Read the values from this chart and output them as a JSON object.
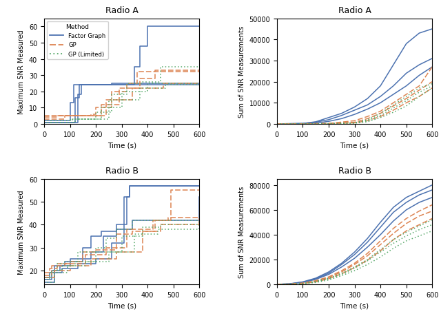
{
  "colors": {
    "factor_graph": "#4C72B0",
    "gp": "#DD8452",
    "gp_limited": "#55A868"
  },
  "subplots": {
    "radio_a_max": {
      "title": "Radio A",
      "xlabel": "Time (s)",
      "ylabel": "Maximum SNR Measured",
      "xlim": [
        0,
        600
      ],
      "ylim": [
        -1,
        65
      ]
    },
    "radio_a_sum": {
      "title": "Radio A",
      "xlabel": "Time (s)",
      "ylabel": "Sum of SNR Measurements",
      "xlim": [
        0,
        600
      ],
      "ylim": [
        -500,
        50000
      ]
    },
    "radio_b_max": {
      "title": "Radio B",
      "xlabel": "Time (s)",
      "ylabel": "Maximum SNR Measured",
      "xlim": [
        0,
        600
      ],
      "ylim": [
        14,
        60
      ]
    },
    "radio_b_sum": {
      "title": "Radio B",
      "xlabel": "Time (s)",
      "ylabel": "Sum of SNR Measurements",
      "xlim": [
        0,
        600
      ],
      "ylim": [
        -500,
        85000
      ]
    }
  },
  "fg_ra_runs": [
    [
      [
        0,
        1
      ],
      [
        120,
        16
      ],
      [
        135,
        24
      ],
      [
        250,
        24
      ],
      [
        260,
        25
      ],
      [
        600,
        25
      ]
    ],
    [
      [
        0,
        2
      ],
      [
        100,
        13
      ],
      [
        115,
        24
      ],
      [
        350,
        35
      ],
      [
        370,
        48
      ],
      [
        400,
        60
      ],
      [
        410,
        60
      ],
      [
        460,
        60
      ],
      [
        600,
        60
      ]
    ],
    [
      [
        0,
        1
      ],
      [
        130,
        18
      ],
      [
        145,
        24
      ],
      [
        600,
        24
      ]
    ]
  ],
  "gp_ra_runs": [
    [
      [
        0,
        4
      ],
      [
        50,
        5
      ],
      [
        180,
        6
      ],
      [
        200,
        10
      ],
      [
        260,
        20
      ],
      [
        320,
        25
      ],
      [
        360,
        32
      ],
      [
        600,
        32
      ]
    ],
    [
      [
        0,
        5
      ],
      [
        60,
        5
      ],
      [
        220,
        12
      ],
      [
        290,
        22
      ],
      [
        370,
        28
      ],
      [
        430,
        33
      ],
      [
        600,
        33
      ]
    ],
    [
      [
        0,
        3
      ],
      [
        80,
        5
      ],
      [
        240,
        15
      ],
      [
        340,
        22
      ],
      [
        460,
        25
      ],
      [
        600,
        25
      ]
    ]
  ],
  "gpl_ra_runs": [
    [
      [
        0,
        1
      ],
      [
        100,
        3
      ],
      [
        200,
        7
      ],
      [
        260,
        18
      ],
      [
        320,
        25
      ],
      [
        380,
        26
      ],
      [
        450,
        35
      ],
      [
        600,
        35
      ]
    ],
    [
      [
        0,
        2
      ],
      [
        110,
        3
      ],
      [
        220,
        10
      ],
      [
        300,
        20
      ],
      [
        400,
        25
      ],
      [
        600,
        25
      ]
    ],
    [
      [
        0,
        1
      ],
      [
        120,
        3
      ],
      [
        250,
        15
      ],
      [
        370,
        22
      ],
      [
        470,
        24
      ],
      [
        600,
        25
      ]
    ]
  ],
  "fg_rb_runs": [
    [
      [
        0,
        17
      ],
      [
        20,
        19
      ],
      [
        40,
        22
      ],
      [
        80,
        24
      ],
      [
        100,
        24
      ],
      [
        150,
        30
      ],
      [
        180,
        35
      ],
      [
        220,
        37
      ],
      [
        280,
        38
      ],
      [
        310,
        52
      ],
      [
        330,
        57
      ],
      [
        360,
        57
      ],
      [
        600,
        57
      ]
    ],
    [
      [
        0,
        16
      ],
      [
        30,
        20
      ],
      [
        60,
        22
      ],
      [
        100,
        25
      ],
      [
        180,
        28
      ],
      [
        230,
        35
      ],
      [
        280,
        40
      ],
      [
        320,
        52
      ],
      [
        330,
        57
      ],
      [
        600,
        57
      ]
    ],
    [
      [
        0,
        15
      ],
      [
        40,
        19
      ],
      [
        70,
        21
      ],
      [
        130,
        23
      ],
      [
        200,
        25
      ],
      [
        260,
        32
      ],
      [
        310,
        38
      ],
      [
        340,
        42
      ],
      [
        600,
        52
      ]
    ]
  ],
  "gp_rb_runs": [
    [
      [
        0,
        19
      ],
      [
        20,
        21
      ],
      [
        50,
        23
      ],
      [
        100,
        24
      ],
      [
        150,
        28
      ],
      [
        200,
        29
      ],
      [
        280,
        36
      ],
      [
        340,
        37
      ],
      [
        430,
        42
      ],
      [
        490,
        55
      ],
      [
        600,
        55
      ]
    ],
    [
      [
        0,
        18
      ],
      [
        30,
        22
      ],
      [
        80,
        23
      ],
      [
        160,
        27
      ],
      [
        240,
        30
      ],
      [
        320,
        38
      ],
      [
        420,
        42
      ],
      [
        480,
        43
      ],
      [
        600,
        42
      ]
    ],
    [
      [
        0,
        17
      ],
      [
        40,
        20
      ],
      [
        100,
        22
      ],
      [
        180,
        25
      ],
      [
        280,
        28
      ],
      [
        380,
        37
      ],
      [
        450,
        40
      ],
      [
        600,
        42
      ]
    ]
  ],
  "gpl_rb_runs": [
    [
      [
        0,
        16
      ],
      [
        20,
        19
      ],
      [
        50,
        23
      ],
      [
        80,
        24
      ],
      [
        130,
        28
      ],
      [
        200,
        30
      ],
      [
        240,
        34
      ],
      [
        280,
        38
      ],
      [
        340,
        42
      ],
      [
        380,
        42
      ],
      [
        600,
        42
      ]
    ],
    [
      [
        0,
        17
      ],
      [
        30,
        20
      ],
      [
        70,
        22
      ],
      [
        120,
        24
      ],
      [
        200,
        28
      ],
      [
        300,
        35
      ],
      [
        380,
        39
      ],
      [
        450,
        40
      ],
      [
        600,
        40
      ]
    ],
    [
      [
        0,
        15
      ],
      [
        40,
        19
      ],
      [
        90,
        22
      ],
      [
        160,
        24
      ],
      [
        250,
        28
      ],
      [
        350,
        36
      ],
      [
        440,
        38
      ],
      [
        600,
        42
      ]
    ]
  ],
  "fg_ra_sum": [
    [
      [
        0,
        0
      ],
      [
        100,
        200
      ],
      [
        150,
        1000
      ],
      [
        200,
        3000
      ],
      [
        250,
        5000
      ],
      [
        300,
        8000
      ],
      [
        350,
        12000
      ],
      [
        400,
        18000
      ],
      [
        450,
        28000
      ],
      [
        500,
        38000
      ],
      [
        550,
        43000
      ],
      [
        600,
        45000
      ]
    ],
    [
      [
        0,
        0
      ],
      [
        100,
        200
      ],
      [
        150,
        800
      ],
      [
        200,
        2000
      ],
      [
        250,
        4000
      ],
      [
        300,
        6500
      ],
      [
        350,
        9000
      ],
      [
        400,
        13000
      ],
      [
        450,
        18000
      ],
      [
        500,
        24000
      ],
      [
        550,
        28000
      ],
      [
        600,
        31000
      ]
    ],
    [
      [
        0,
        0
      ],
      [
        100,
        100
      ],
      [
        150,
        400
      ],
      [
        200,
        1200
      ],
      [
        250,
        2500
      ],
      [
        300,
        4500
      ],
      [
        350,
        7000
      ],
      [
        400,
        10000
      ],
      [
        450,
        14000
      ],
      [
        500,
        18000
      ],
      [
        550,
        23000
      ],
      [
        600,
        27000
      ]
    ]
  ],
  "gp_ra_sum": [
    [
      [
        0,
        0
      ],
      [
        100,
        50
      ],
      [
        200,
        200
      ],
      [
        300,
        1500
      ],
      [
        350,
        3500
      ],
      [
        400,
        6000
      ],
      [
        450,
        10000
      ],
      [
        500,
        14000
      ],
      [
        550,
        18000
      ],
      [
        600,
        27000
      ]
    ],
    [
      [
        0,
        0
      ],
      [
        100,
        50
      ],
      [
        200,
        150
      ],
      [
        300,
        800
      ],
      [
        350,
        2500
      ],
      [
        400,
        5000
      ],
      [
        450,
        8500
      ],
      [
        500,
        12000
      ],
      [
        550,
        16000
      ],
      [
        600,
        20000
      ]
    ],
    [
      [
        0,
        0
      ],
      [
        100,
        30
      ],
      [
        200,
        100
      ],
      [
        300,
        500
      ],
      [
        350,
        1500
      ],
      [
        400,
        3500
      ],
      [
        450,
        6500
      ],
      [
        500,
        10000
      ],
      [
        550,
        13000
      ],
      [
        600,
        17000
      ]
    ]
  ],
  "gpl_ra_sum": [
    [
      [
        0,
        0
      ],
      [
        100,
        30
      ],
      [
        200,
        100
      ],
      [
        300,
        500
      ],
      [
        350,
        2000
      ],
      [
        400,
        5000
      ],
      [
        450,
        9000
      ],
      [
        500,
        13000
      ],
      [
        550,
        17000
      ],
      [
        600,
        19000
      ]
    ],
    [
      [
        0,
        0
      ],
      [
        100,
        30
      ],
      [
        200,
        100
      ],
      [
        300,
        400
      ],
      [
        350,
        1500
      ],
      [
        400,
        4000
      ],
      [
        450,
        7500
      ],
      [
        500,
        11000
      ],
      [
        550,
        15000
      ],
      [
        600,
        18000
      ]
    ],
    [
      [
        0,
        0
      ],
      [
        100,
        20
      ],
      [
        200,
        80
      ],
      [
        300,
        300
      ],
      [
        350,
        1000
      ],
      [
        400,
        3000
      ],
      [
        450,
        5500
      ],
      [
        500,
        8500
      ],
      [
        550,
        13000
      ],
      [
        600,
        17000
      ]
    ]
  ],
  "fg_rb_sum": [
    [
      [
        0,
        0
      ],
      [
        50,
        500
      ],
      [
        100,
        2000
      ],
      [
        150,
        5000
      ],
      [
        200,
        10000
      ],
      [
        250,
        17000
      ],
      [
        300,
        26000
      ],
      [
        350,
        37000
      ],
      [
        400,
        50000
      ],
      [
        450,
        62000
      ],
      [
        500,
        70000
      ],
      [
        550,
        75000
      ],
      [
        600,
        80000
      ]
    ],
    [
      [
        0,
        0
      ],
      [
        50,
        400
      ],
      [
        100,
        1800
      ],
      [
        150,
        4500
      ],
      [
        200,
        9000
      ],
      [
        250,
        16000
      ],
      [
        300,
        24000
      ],
      [
        350,
        34000
      ],
      [
        400,
        46000
      ],
      [
        450,
        58000
      ],
      [
        500,
        66000
      ],
      [
        550,
        72000
      ],
      [
        600,
        76000
      ]
    ],
    [
      [
        0,
        0
      ],
      [
        50,
        300
      ],
      [
        100,
        1500
      ],
      [
        150,
        4000
      ],
      [
        200,
        8000
      ],
      [
        250,
        14000
      ],
      [
        300,
        21000
      ],
      [
        350,
        30000
      ],
      [
        400,
        40000
      ],
      [
        450,
        51000
      ],
      [
        500,
        60000
      ],
      [
        550,
        66000
      ],
      [
        600,
        70000
      ]
    ]
  ],
  "gp_rb_sum": [
    [
      [
        0,
        0
      ],
      [
        50,
        200
      ],
      [
        100,
        1000
      ],
      [
        150,
        3000
      ],
      [
        200,
        6000
      ],
      [
        250,
        11000
      ],
      [
        300,
        17000
      ],
      [
        350,
        25000
      ],
      [
        400,
        35000
      ],
      [
        450,
        45000
      ],
      [
        500,
        53000
      ],
      [
        550,
        59000
      ],
      [
        600,
        64000
      ]
    ],
    [
      [
        0,
        0
      ],
      [
        50,
        150
      ],
      [
        100,
        800
      ],
      [
        150,
        2500
      ],
      [
        200,
        5500
      ],
      [
        250,
        10000
      ],
      [
        300,
        16000
      ],
      [
        350,
        23000
      ],
      [
        400,
        32000
      ],
      [
        450,
        41000
      ],
      [
        500,
        49000
      ],
      [
        550,
        55000
      ],
      [
        600,
        59000
      ]
    ],
    [
      [
        0,
        0
      ],
      [
        50,
        100
      ],
      [
        100,
        600
      ],
      [
        150,
        2000
      ],
      [
        200,
        4500
      ],
      [
        250,
        8500
      ],
      [
        300,
        13500
      ],
      [
        350,
        19500
      ],
      [
        400,
        27000
      ],
      [
        450,
        36000
      ],
      [
        500,
        43000
      ],
      [
        550,
        48000
      ],
      [
        600,
        53000
      ]
    ]
  ],
  "gpl_rb_sum": [
    [
      [
        0,
        0
      ],
      [
        50,
        150
      ],
      [
        100,
        700
      ],
      [
        150,
        2500
      ],
      [
        200,
        5000
      ],
      [
        250,
        9000
      ],
      [
        300,
        14000
      ],
      [
        350,
        20000
      ],
      [
        400,
        28000
      ],
      [
        450,
        36000
      ],
      [
        500,
        42000
      ],
      [
        550,
        47000
      ],
      [
        600,
        52000
      ]
    ],
    [
      [
        0,
        0
      ],
      [
        50,
        100
      ],
      [
        100,
        500
      ],
      [
        150,
        2000
      ],
      [
        200,
        4500
      ],
      [
        250,
        8000
      ],
      [
        300,
        13000
      ],
      [
        350,
        19000
      ],
      [
        400,
        26000
      ],
      [
        450,
        33000
      ],
      [
        500,
        39000
      ],
      [
        550,
        44000
      ],
      [
        600,
        48000
      ]
    ],
    [
      [
        0,
        0
      ],
      [
        50,
        80
      ],
      [
        100,
        400
      ],
      [
        150,
        1500
      ],
      [
        200,
        3500
      ],
      [
        250,
        7000
      ],
      [
        300,
        11000
      ],
      [
        350,
        16000
      ],
      [
        400,
        22000
      ],
      [
        450,
        29000
      ],
      [
        500,
        35000
      ],
      [
        550,
        39000
      ],
      [
        600,
        43000
      ]
    ]
  ]
}
